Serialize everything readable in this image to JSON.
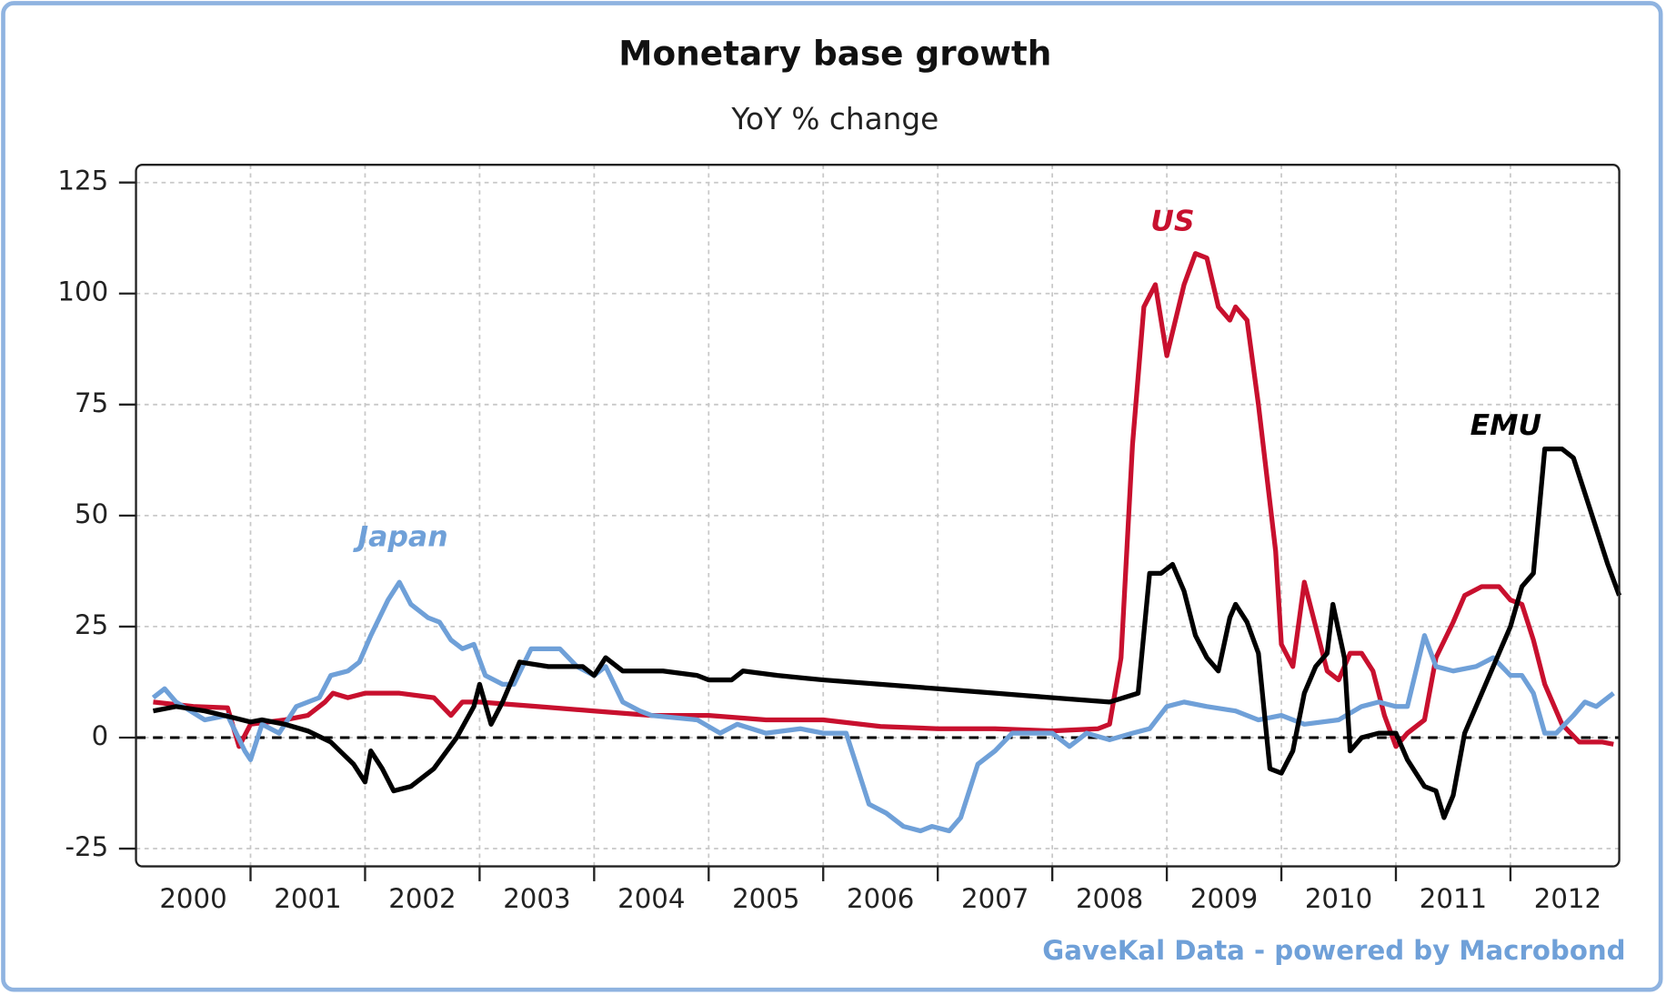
{
  "chart_data": {
    "type": "line",
    "title": "Monetary base growth",
    "subtitle": "YoY % change",
    "source": "GaveKal Data - powered by Macrobond",
    "xlim": [
      2000,
      2012.95
    ],
    "xticks": [
      {
        "value": 2000.5,
        "label": "2000"
      },
      {
        "value": 2001.5,
        "label": "2001"
      },
      {
        "value": 2002.5,
        "label": "2002"
      },
      {
        "value": 2003.5,
        "label": "2003"
      },
      {
        "value": 2004.5,
        "label": "2004"
      },
      {
        "value": 2005.5,
        "label": "2005"
      },
      {
        "value": 2006.5,
        "label": "2006"
      },
      {
        "value": 2007.5,
        "label": "2007"
      },
      {
        "value": 2008.5,
        "label": "2008"
      },
      {
        "value": 2009.5,
        "label": "2009"
      },
      {
        "value": 2010.5,
        "label": "2010"
      },
      {
        "value": 2011.5,
        "label": "2011"
      },
      {
        "value": 2012.5,
        "label": "2012"
      }
    ],
    "xgrid": [
      2001,
      2002,
      2003,
      2004,
      2005,
      2006,
      2007,
      2008,
      2009,
      2010,
      2011,
      2012
    ],
    "ylim": [
      -29,
      129
    ],
    "yticks": [
      125,
      100,
      75,
      50,
      25,
      0,
      -25
    ],
    "grid": true,
    "zero_line": true,
    "series": [
      {
        "name": "US",
        "color": "#c8102e",
        "x": [
          2000.15,
          2000.5,
          2000.8,
          2000.9,
          2001.0,
          2001.3,
          2001.5,
          2001.65,
          2001.72,
          2001.85,
          2002.0,
          2002.3,
          2002.6,
          2002.75,
          2002.85,
          2003.0,
          2003.5,
          2004.0,
          2004.5,
          2005.0,
          2005.5,
          2006.0,
          2006.5,
          2007.0,
          2007.5,
          2008.0,
          2008.4,
          2008.5,
          2008.6,
          2008.7,
          2008.8,
          2008.9,
          2009.0,
          2009.15,
          2009.25,
          2009.35,
          2009.45,
          2009.55,
          2009.6,
          2009.7,
          2009.8,
          2009.95,
          2010.0,
          2010.1,
          2010.2,
          2010.3,
          2010.4,
          2010.5,
          2010.6,
          2010.7,
          2010.8,
          2010.9,
          2011.0,
          2011.1,
          2011.25,
          2011.35,
          2011.5,
          2011.6,
          2011.75,
          2011.9,
          2012.0,
          2012.1,
          2012.2,
          2012.3,
          2012.45,
          2012.6,
          2012.8,
          2012.9
        ],
        "values": [
          8,
          7,
          6.7,
          -2,
          3,
          4,
          5,
          8,
          10,
          9,
          10,
          10,
          9,
          5,
          8,
          8,
          7,
          6,
          5,
          5,
          4,
          4,
          2.5,
          2,
          2,
          1.5,
          2,
          3,
          18,
          66,
          97,
          102,
          86,
          102,
          109,
          108,
          97,
          94,
          97,
          94,
          75,
          42,
          21,
          16,
          35,
          25,
          15,
          13,
          19,
          19,
          15,
          5,
          -2,
          1,
          4,
          18,
          26,
          32,
          34,
          34,
          31,
          30,
          22,
          12,
          3,
          -1,
          -1,
          -1.5
        ]
      },
      {
        "name": "Japan",
        "color": "#6fa0d8",
        "x": [
          2000.15,
          2000.25,
          2000.35,
          2000.6,
          2000.8,
          2000.95,
          2001.0,
          2001.1,
          2001.25,
          2001.4,
          2001.6,
          2001.7,
          2001.85,
          2001.95,
          2002.05,
          2002.2,
          2002.3,
          2002.4,
          2002.55,
          2002.65,
          2002.75,
          2002.85,
          2002.95,
          2003.05,
          2003.2,
          2003.3,
          2003.45,
          2003.7,
          2003.85,
          2004.0,
          2004.1,
          2004.25,
          2004.4,
          2004.5,
          2004.9,
          2005.1,
          2005.25,
          2005.5,
          2005.8,
          2006.0,
          2006.2,
          2006.4,
          2006.55,
          2006.7,
          2006.85,
          2006.95,
          2007.1,
          2007.2,
          2007.35,
          2007.5,
          2007.65,
          2007.8,
          2008.0,
          2008.15,
          2008.3,
          2008.5,
          2008.7,
          2008.85,
          2009.0,
          2009.15,
          2009.35,
          2009.6,
          2009.8,
          2010.0,
          2010.2,
          2010.5,
          2010.7,
          2010.85,
          2011.0,
          2011.1,
          2011.25,
          2011.35,
          2011.5,
          2011.7,
          2011.85,
          2012.0,
          2012.1,
          2012.2,
          2012.3,
          2012.4,
          2012.55,
          2012.65,
          2012.75,
          2012.9
        ],
        "values": [
          9,
          11,
          8,
          4,
          5,
          -3,
          -5,
          3,
          1,
          7,
          9,
          14,
          15,
          17,
          23,
          31,
          35,
          30,
          27,
          26,
          22,
          20,
          21,
          14,
          12,
          12,
          20,
          20,
          16,
          14,
          16,
          8,
          6,
          5,
          4,
          1,
          3,
          1,
          2,
          1,
          1,
          -15,
          -17,
          -20,
          -21,
          -20,
          -21,
          -18,
          -6,
          -3,
          1,
          1,
          1,
          -2,
          1,
          -0.5,
          1,
          2,
          7,
          8,
          7,
          6,
          4,
          5,
          3,
          4,
          7,
          8,
          7,
          7,
          23,
          16,
          15,
          16,
          18,
          14,
          14,
          10,
          1,
          1,
          5,
          8,
          7,
          10
        ]
      },
      {
        "name": "EMU",
        "color": "#000000",
        "x": [
          2000.15,
          2000.35,
          2000.6,
          2000.85,
          2001.0,
          2001.1,
          2001.3,
          2001.5,
          2001.7,
          2001.9,
          2002.0,
          2002.05,
          2002.15,
          2002.25,
          2002.4,
          2002.6,
          2002.8,
          2002.95,
          2003.0,
          2003.1,
          2003.2,
          2003.35,
          2003.6,
          2003.9,
          2004.0,
          2004.1,
          2004.25,
          2004.6,
          2004.9,
          2005.0,
          2005.2,
          2005.3,
          2005.6,
          2006.0,
          2006.5,
          2007.0,
          2007.5,
          2008.0,
          2008.5,
          2008.75,
          2008.85,
          2008.95,
          2009.05,
          2009.15,
          2009.25,
          2009.35,
          2009.45,
          2009.55,
          2009.6,
          2009.7,
          2009.8,
          2009.9,
          2010.0,
          2010.1,
          2010.2,
          2010.3,
          2010.4,
          2010.45,
          2010.55,
          2010.6,
          2010.7,
          2010.85,
          2011.0,
          2011.1,
          2011.25,
          2011.35,
          2011.42,
          2011.5,
          2011.6,
          2011.8,
          2012.0,
          2012.1,
          2012.2,
          2012.3,
          2012.45,
          2012.55,
          2012.7,
          2012.85,
          2012.95
        ],
        "values": [
          6,
          7,
          6,
          4.5,
          3.5,
          4,
          3,
          1.5,
          -1,
          -6,
          -10,
          -3,
          -7,
          -12,
          -11,
          -7,
          0,
          7,
          12,
          3,
          8,
          17,
          16,
          16,
          14,
          18,
          15,
          15,
          14,
          13,
          13,
          15,
          14,
          13,
          12,
          11,
          10,
          9,
          8,
          10,
          37,
          37,
          39,
          33,
          23,
          18,
          15,
          27,
          30,
          26,
          19,
          -7,
          -8,
          -3,
          10,
          16,
          19,
          30,
          18,
          -3,
          0,
          1,
          1,
          -5,
          -11,
          -12,
          -18,
          -13,
          1,
          13,
          25,
          34,
          37,
          65,
          65,
          63,
          51,
          39,
          32
        ]
      }
    ]
  }
}
